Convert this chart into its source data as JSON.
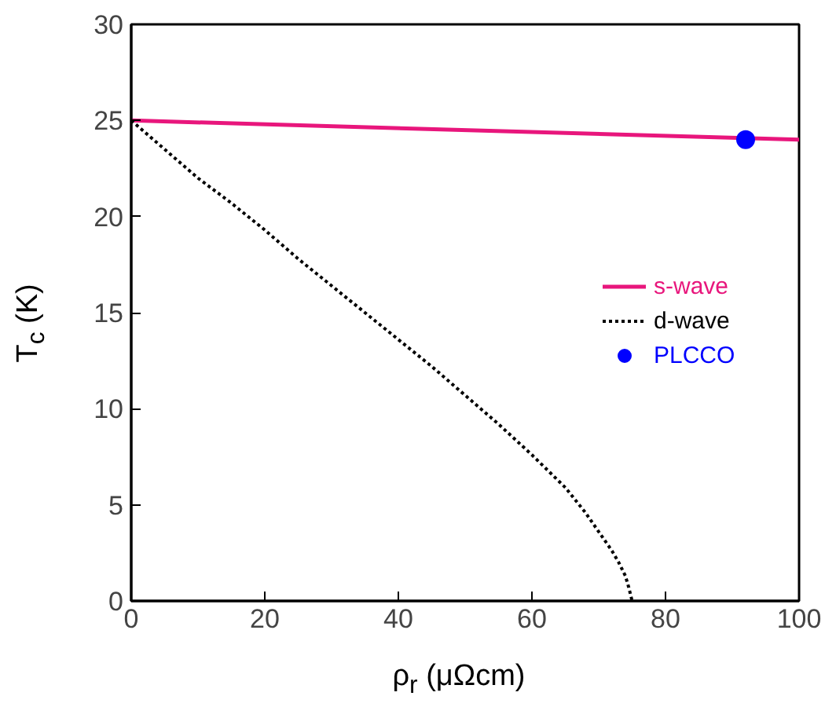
{
  "chart_data": {
    "type": "line",
    "xlabel": "ρ$_{r}$ (μΩcm)",
    "ylabel": "T$_{c}$ (K)",
    "xlim": [
      0,
      100
    ],
    "ylim": [
      0,
      30
    ],
    "xticks": [
      0,
      20,
      40,
      60,
      80,
      100
    ],
    "yticks": [
      0,
      5,
      10,
      15,
      20,
      25,
      30
    ],
    "grid": false,
    "legend": "right",
    "series": [
      {
        "name": "s-wave",
        "color": "#e8167c",
        "x": [
          0,
          100
        ],
        "values": [
          25,
          24
        ],
        "line_style": "solid"
      },
      {
        "name": "d-wave",
        "color": "#000000",
        "x": [
          0,
          5,
          10,
          15,
          20,
          25,
          30,
          35,
          40,
          45,
          50,
          55,
          60,
          65,
          68,
          70,
          72,
          73,
          74,
          74.5,
          75
        ],
        "values": [
          25,
          23.5,
          22,
          20.7,
          19.3,
          17.8,
          16.4,
          15,
          13.6,
          12.2,
          10.7,
          9.2,
          7.6,
          5.9,
          4.6,
          3.6,
          2.6,
          2,
          1.3,
          0.7,
          0
        ],
        "line_style": "dotted"
      },
      {
        "name": "PLCCO",
        "color": "#0000ff",
        "type": "scatter",
        "marker": "circle",
        "x": [
          92
        ],
        "values": [
          24
        ]
      }
    ]
  }
}
